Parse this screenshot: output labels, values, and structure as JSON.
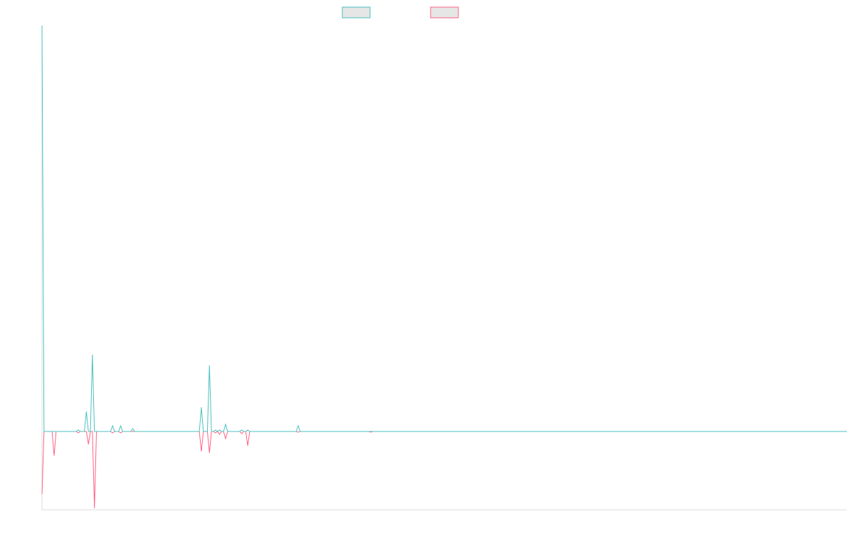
{
  "chart_data": {
    "type": "line",
    "title": "",
    "xlabel": "",
    "ylabel": "",
    "x_count": 400,
    "ylim": [
      -110,
      570
    ],
    "grid": false,
    "legend_position": "top-center",
    "series": [
      {
        "color": "#4bc0c0",
        "fill": "#e6e6e6",
        "values": {
          "0": 570,
          "1": 0,
          "18": 2,
          "22": 28,
          "25": 108,
          "35": 8,
          "39": 8,
          "45": 4,
          "79": 34,
          "83": 93,
          "86": 2,
          "88": 2,
          "91": 10,
          "99": 2,
          "102": 2,
          "127": 8
        }
      },
      {
        "color": "#ff6384",
        "fill": "#e6e6e6",
        "values": {
          "0": -88,
          "1": 0,
          "6": -34,
          "18": -2,
          "23": -18,
          "26": -108,
          "35": -2,
          "39": -2,
          "79": -28,
          "83": -30,
          "86": -2,
          "88": -4,
          "91": -10,
          "99": -3,
          "102": -20,
          "127": -1,
          "163": -1
        }
      }
    ]
  }
}
